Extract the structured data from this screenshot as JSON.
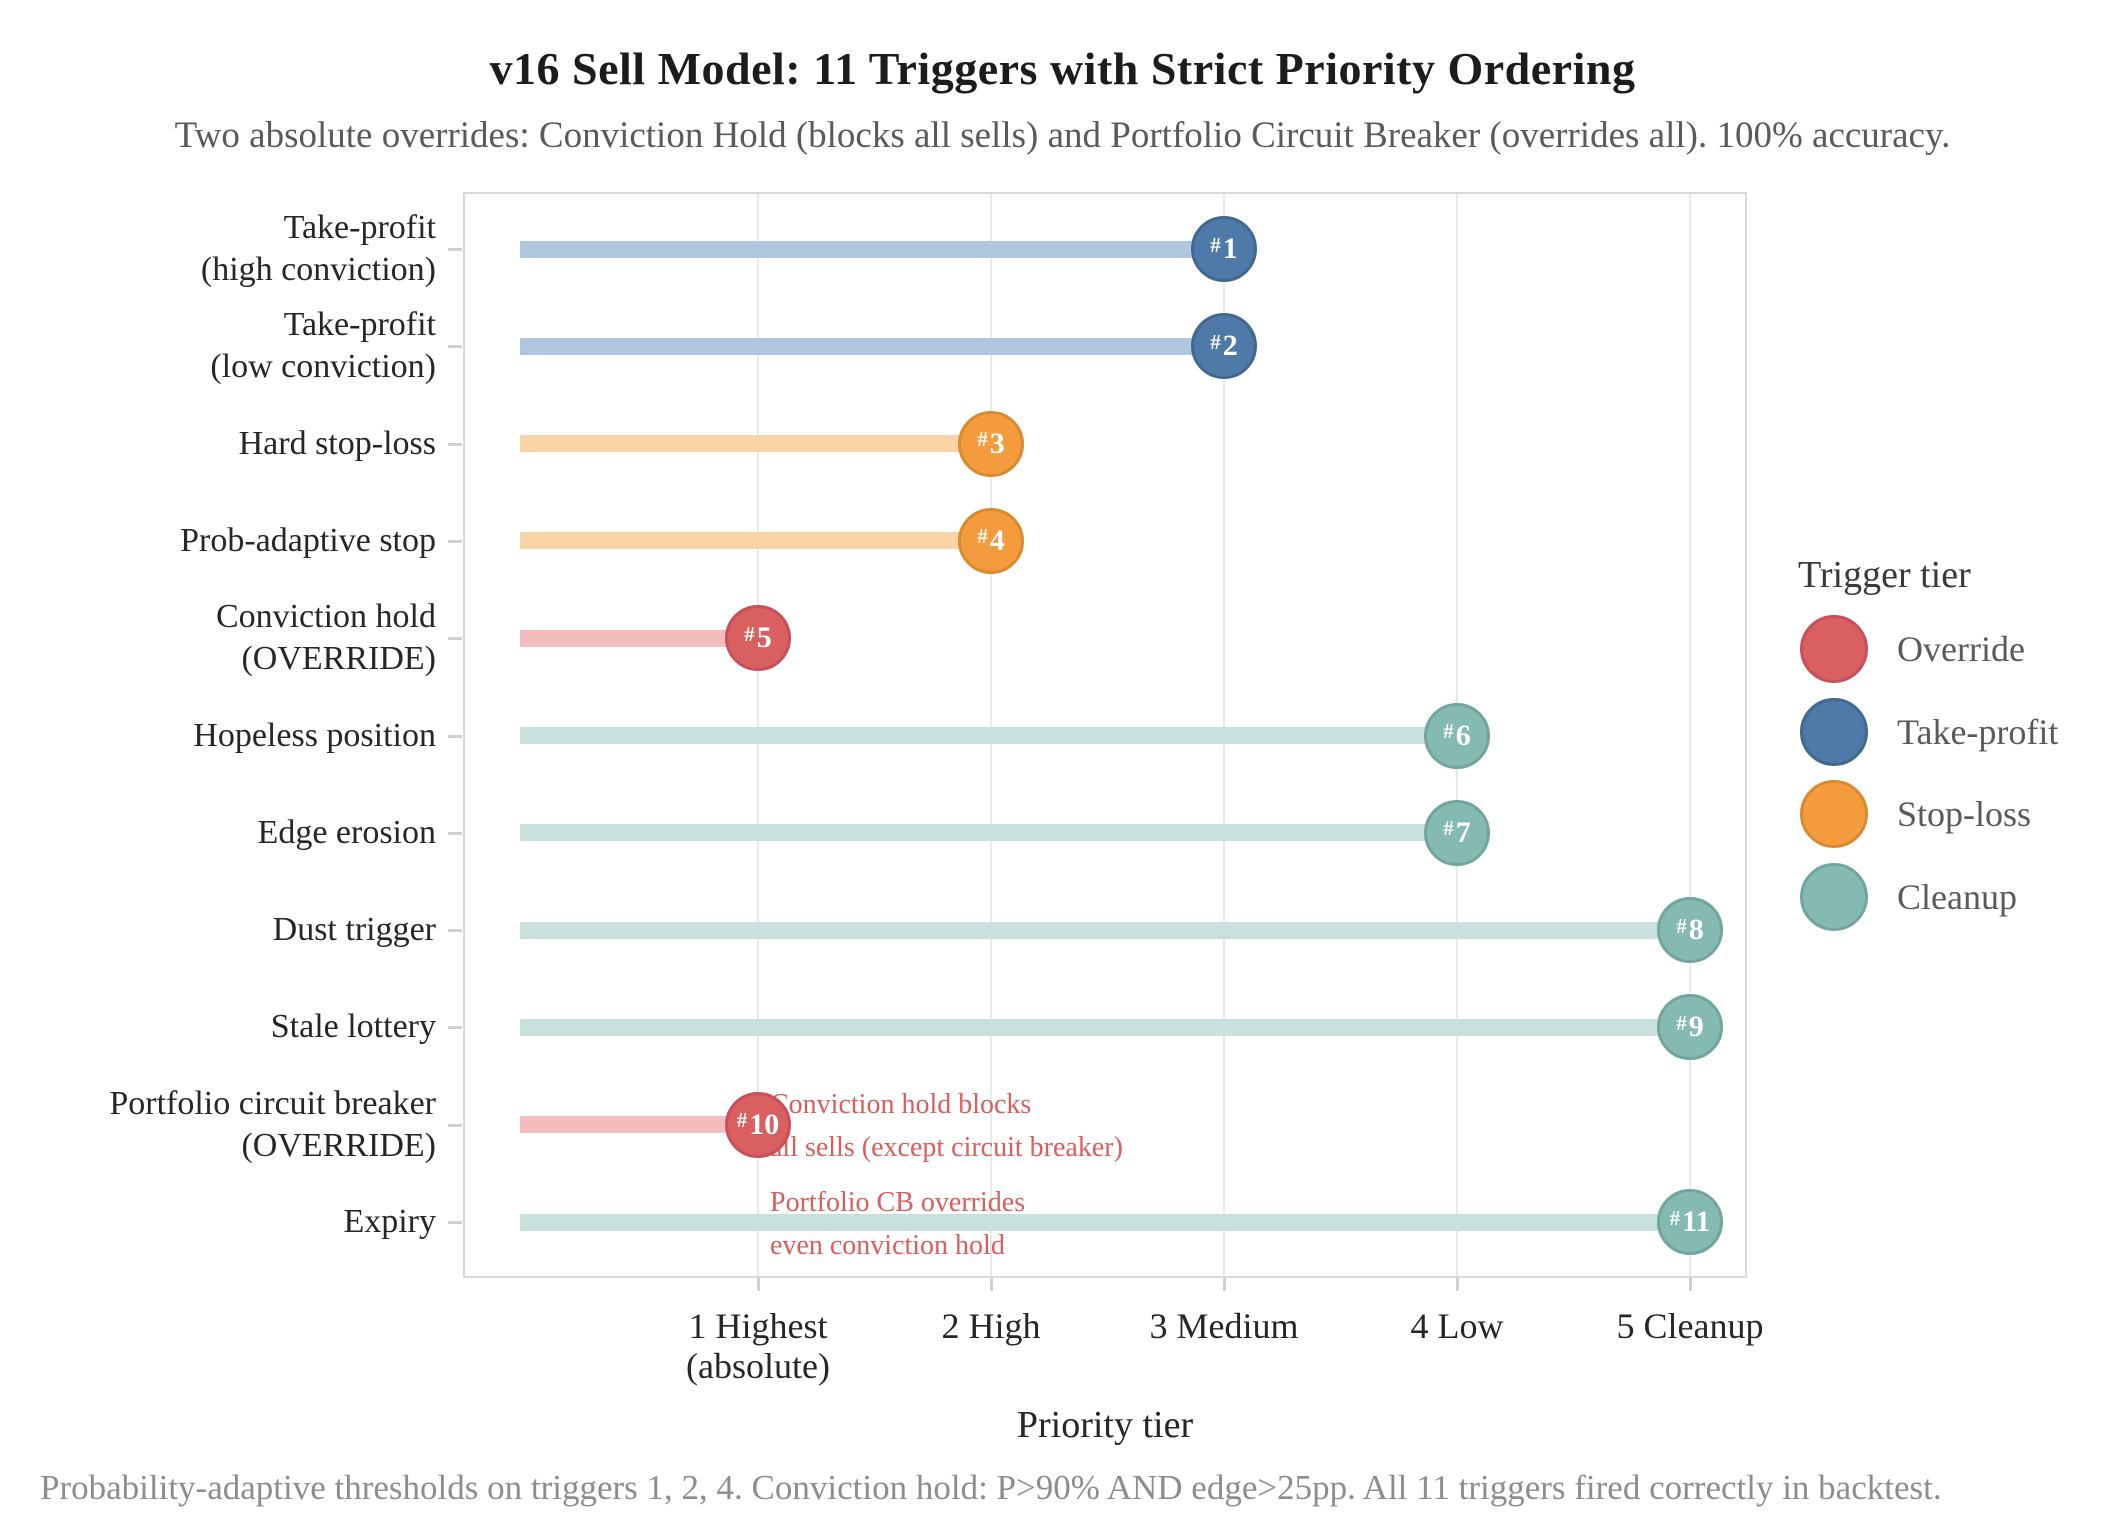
{
  "title": "v16 Sell Model: 11 Triggers with Strict Priority Ordering",
  "subtitle": "Two absolute overrides: Conviction Hold (blocks all sells) and Portfolio Circuit Breaker (overrides all). 100% accuracy.",
  "footer": "Probability-adaptive thresholds on triggers 1, 2, 4. Conviction hold: P>90% AND edge>25pp. All 11 triggers fired correctly in backtest.",
  "chart_data": {
    "type": "bar",
    "style": "horizontal-lollipop",
    "xlabel": "Priority tier",
    "ylabel": "",
    "xlim": [
      -0.27,
      5.25
    ],
    "grid": "vertical-only",
    "x_ticks": [
      {
        "value": 1,
        "lines": [
          "1 Highest",
          "(absolute)"
        ]
      },
      {
        "value": 2,
        "lines": [
          "2 High"
        ]
      },
      {
        "value": 3,
        "lines": [
          "3 Medium"
        ]
      },
      {
        "value": 4,
        "lines": [
          "4 Low"
        ]
      },
      {
        "value": 5,
        "lines": [
          "5 Cleanup"
        ]
      }
    ],
    "triggers": [
      {
        "rank": 1,
        "dot_label": "#1",
        "label_lines": [
          "Take-profit",
          "(high conviction)"
        ],
        "tier": 3,
        "group": "Take-profit"
      },
      {
        "rank": 2,
        "dot_label": "#2",
        "label_lines": [
          "Take-profit",
          "(low conviction)"
        ],
        "tier": 3,
        "group": "Take-profit"
      },
      {
        "rank": 3,
        "dot_label": "#3",
        "label_lines": [
          "Hard stop-loss"
        ],
        "tier": 2,
        "group": "Stop-loss"
      },
      {
        "rank": 4,
        "dot_label": "#4",
        "label_lines": [
          "Prob-adaptive stop"
        ],
        "tier": 2,
        "group": "Stop-loss"
      },
      {
        "rank": 5,
        "dot_label": "#5",
        "label_lines": [
          "Conviction hold",
          "(OVERRIDE)"
        ],
        "tier": 1,
        "group": "Override"
      },
      {
        "rank": 6,
        "dot_label": "#6",
        "label_lines": [
          "Hopeless position"
        ],
        "tier": 4,
        "group": "Cleanup"
      },
      {
        "rank": 7,
        "dot_label": "#7",
        "label_lines": [
          "Edge erosion"
        ],
        "tier": 4,
        "group": "Cleanup"
      },
      {
        "rank": 8,
        "dot_label": "#8",
        "label_lines": [
          "Dust trigger"
        ],
        "tier": 5,
        "group": "Cleanup"
      },
      {
        "rank": 9,
        "dot_label": "#9",
        "label_lines": [
          "Stale lottery"
        ],
        "tier": 5,
        "group": "Cleanup"
      },
      {
        "rank": 10,
        "dot_label": "#10",
        "label_lines": [
          "Portfolio circuit breaker",
          "(OVERRIDE)"
        ],
        "tier": 1,
        "group": "Override"
      },
      {
        "rank": 11,
        "dot_label": "#11",
        "label_lines": [
          "Expiry"
        ],
        "tier": 5,
        "group": "Cleanup"
      }
    ],
    "legend": {
      "title": "Trigger tier",
      "position": "right",
      "items": [
        {
          "label": "Override",
          "group": "Override"
        },
        {
          "label": "Take-profit",
          "group": "Take-profit"
        },
        {
          "label": "Stop-loss",
          "group": "Stop-loss"
        },
        {
          "label": "Cleanup",
          "group": "Cleanup"
        }
      ]
    },
    "annotations": [
      {
        "lines": [
          "Conviction hold blocks",
          "all sells (except circuit breaker)"
        ],
        "anchor_rank": 10
      },
      {
        "lines": [
          "Portfolio CB overrides",
          "even conviction hold"
        ],
        "anchor_rank": 11
      }
    ],
    "annotation_color": "#dd5c5c",
    "palette": {
      "Override": {
        "dot": "#d95f60",
        "edge": "#c8505a",
        "bar": "#f3bcbd"
      },
      "Take-profit": {
        "dot": "#4e79a8",
        "edge": "#41688f",
        "bar": "#aec6de"
      },
      "Stop-loss": {
        "dot": "#f49c3d",
        "edge": "#da8a2e",
        "bar": "#f9d4a6"
      },
      "Cleanup": {
        "dot": "#84bab1",
        "edge": "#71a59d",
        "bar": "#c9e1dd"
      }
    }
  }
}
